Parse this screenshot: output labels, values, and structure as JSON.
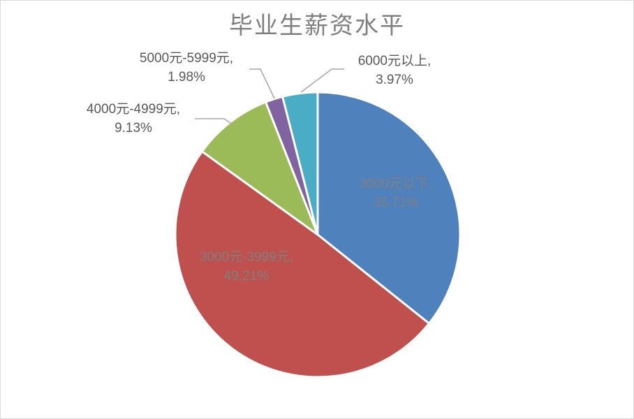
{
  "chart_data": {
    "type": "pie",
    "title": "毕业生薪资水平",
    "slices": [
      {
        "name": "3000元以下",
        "value": 35.71,
        "label_line1": "3000元以下,",
        "label_line2": "35.71%",
        "color": "#4f81bd",
        "label_color": "#7f7f7f"
      },
      {
        "name": "3000元-3999元",
        "value": 49.21,
        "label_line1": "3000元-3999元,",
        "label_line2": "49.21%",
        "color": "#c0504d",
        "label_color": "#7f7f7f"
      },
      {
        "name": "4000元-4999元",
        "value": 9.13,
        "label_line1": "4000元-4999元,",
        "label_line2": "9.13%",
        "color": "#9bbb59",
        "label_color": "#595959"
      },
      {
        "name": "5000元-5999元",
        "value": 1.98,
        "label_line1": "5000元-5999元,",
        "label_line2": "1.98%",
        "color": "#8064a2",
        "label_color": "#595959"
      },
      {
        "name": "6000元以上",
        "value": 3.97,
        "label_line1": "6000元以上,",
        "label_line2": "3.97%",
        "color": "#4bacc6",
        "label_color": "#595959"
      }
    ]
  }
}
